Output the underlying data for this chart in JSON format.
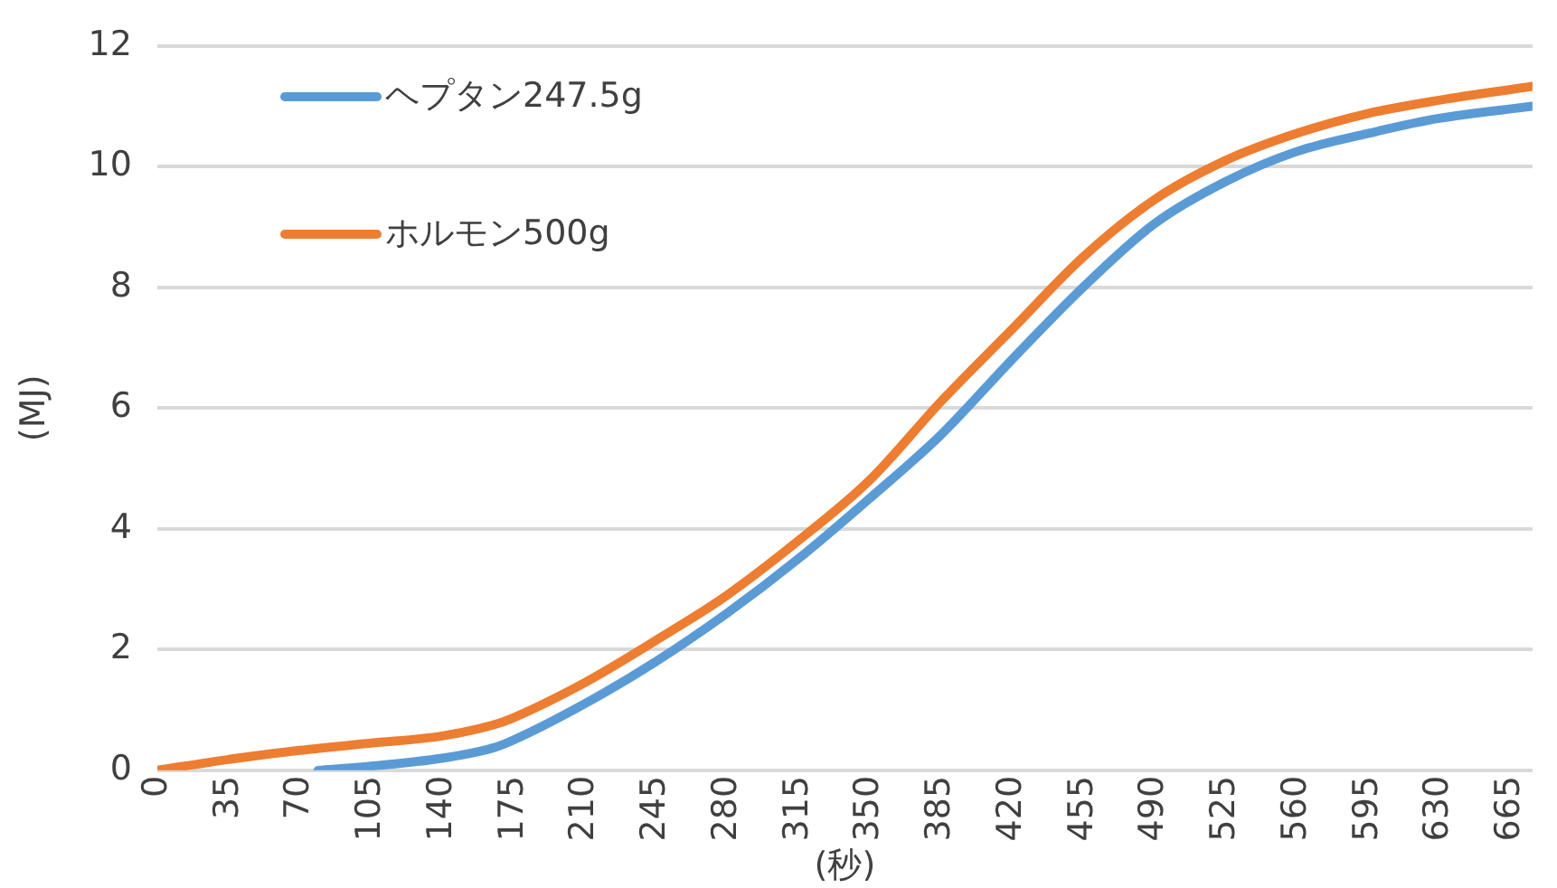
{
  "chart_data": {
    "type": "line",
    "xlabel": "(秒)",
    "ylabel": "(MJ)",
    "xlim": [
      0,
      676
    ],
    "xticks": [
      0,
      35,
      70,
      105,
      140,
      175,
      210,
      245,
      280,
      315,
      350,
      385,
      420,
      455,
      490,
      525,
      560,
      595,
      630,
      665
    ],
    "ylim": [
      0,
      12
    ],
    "yticks": [
      0,
      2,
      4,
      6,
      8,
      10,
      12
    ],
    "grid": "y",
    "legend": "top left",
    "marker": "none",
    "line_style": "solid",
    "series": [
      {
        "name": "ヘプタン247.5g",
        "color": "#5b9bd5",
        "x": [
          79,
          105,
          140,
          165,
          175,
          210,
          245,
          280,
          315,
          350,
          385,
          420,
          455,
          490,
          525,
          560,
          595,
          630,
          676
        ],
        "values": [
          0,
          0.07,
          0.2,
          0.37,
          0.5,
          1.1,
          1.8,
          2.6,
          3.5,
          4.5,
          5.55,
          6.8,
          8.0,
          9.05,
          9.75,
          10.25,
          10.55,
          10.8,
          11.0
        ]
      },
      {
        "name": "ホルモン500g",
        "color": "#ed7d31",
        "x": [
          0,
          35,
          70,
          105,
          140,
          165,
          175,
          210,
          245,
          280,
          315,
          350,
          385,
          420,
          455,
          490,
          525,
          560,
          595,
          630,
          676
        ],
        "values": [
          0,
          0.18,
          0.33,
          0.45,
          0.57,
          0.75,
          0.87,
          1.45,
          2.15,
          2.9,
          3.8,
          4.8,
          6.1,
          7.3,
          8.5,
          9.45,
          10.1,
          10.55,
          10.88,
          11.1,
          11.33
        ]
      }
    ]
  }
}
